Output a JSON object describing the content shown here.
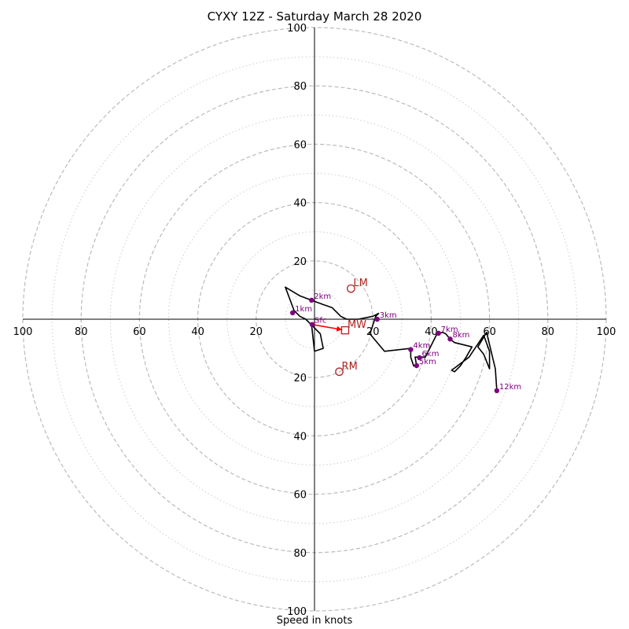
{
  "chart_data": {
    "type": "hodograph",
    "title": "CYXY 12Z - Saturday March 28 2020",
    "xlabel": "Speed in knots",
    "ring_labels": [
      "20",
      "40",
      "60",
      "80",
      "100"
    ],
    "ring_values": [
      20,
      40,
      60,
      80,
      100
    ],
    "minor_ring_values": [
      10,
      30,
      50,
      70,
      90
    ],
    "axis_range": [
      -100,
      100
    ],
    "grid": true,
    "colors": {
      "trace": "#000000",
      "height_marker": "#800080",
      "storm_motion": "#b22222",
      "shear_vector": "#ff0000",
      "grid_major": "#bbbbbb",
      "grid_minor": "#cccccc"
    },
    "trace": [
      [
        -1,
        -2
      ],
      [
        0,
        -11
      ],
      [
        3,
        -10
      ],
      [
        2,
        -5
      ],
      [
        1,
        -4
      ],
      [
        0,
        -3
      ],
      [
        -1,
        -2
      ],
      [
        -2,
        -1
      ],
      [
        -3,
        0
      ],
      [
        -5,
        1
      ],
      [
        -7,
        3
      ],
      [
        -10,
        11
      ],
      [
        -5,
        8
      ],
      [
        -1,
        6.5
      ],
      [
        3,
        5
      ],
      [
        6,
        4
      ],
      [
        8,
        2
      ],
      [
        9,
        1
      ],
      [
        11,
        0
      ],
      [
        15,
        0
      ],
      [
        20,
        1
      ],
      [
        22,
        2
      ],
      [
        21,
        1
      ],
      [
        20,
        -2
      ],
      [
        19,
        -5
      ],
      [
        24,
        -11
      ],
      [
        33,
        -10
      ],
      [
        33,
        -13
      ],
      [
        34,
        -16
      ],
      [
        35,
        -16
      ],
      [
        34.5,
        -13
      ],
      [
        35,
        -13
      ],
      [
        36,
        -13
      ],
      [
        38,
        -13
      ],
      [
        40,
        -9
      ],
      [
        42,
        -5
      ],
      [
        44,
        -4.5
      ],
      [
        45,
        -5
      ],
      [
        46.5,
        -6.8
      ],
      [
        48,
        -8
      ],
      [
        54,
        -9.5
      ],
      [
        52,
        -13
      ],
      [
        50,
        -16
      ],
      [
        48,
        -18
      ],
      [
        47,
        -17.5
      ],
      [
        49,
        -16
      ],
      [
        53,
        -13
      ],
      [
        58,
        -5.5
      ],
      [
        60,
        -11
      ],
      [
        60,
        -17
      ],
      [
        58,
        -12
      ],
      [
        56,
        -9.5
      ],
      [
        59,
        -4.5
      ],
      [
        62,
        -17
      ],
      [
        62.5,
        -24.5
      ]
    ],
    "height_markers": [
      {
        "label": "Sfc",
        "u": -0.8,
        "v": -1.8
      },
      {
        "label": "1km",
        "u": -7.5,
        "v": 2.2
      },
      {
        "label": "2km",
        "u": -1,
        "v": 6.5
      },
      {
        "label": "3km",
        "u": 21.5,
        "v": 0
      },
      {
        "label": "4km",
        "u": 33,
        "v": -10.4
      },
      {
        "label": "5km",
        "u": 35,
        "v": -15.9
      },
      {
        "label": "6km",
        "u": 36,
        "v": -13.2
      },
      {
        "label": "7km",
        "u": 42.5,
        "v": -4.8
      },
      {
        "label": "8km",
        "u": 46.5,
        "v": -6.8
      },
      {
        "label": "12km",
        "u": 62.5,
        "v": -24.5
      }
    ],
    "storm_motion": [
      {
        "label": "LM",
        "u": 12.5,
        "v": 10.5,
        "shape": "circle"
      },
      {
        "label": "MW",
        "u": 10.5,
        "v": -3.8,
        "shape": "square"
      },
      {
        "label": "RM",
        "u": 8.5,
        "v": -18,
        "shape": "circle"
      }
    ],
    "shear_vector": {
      "from": [
        -0.8,
        -1.8
      ],
      "to": [
        9.5,
        -3.6
      ]
    }
  }
}
